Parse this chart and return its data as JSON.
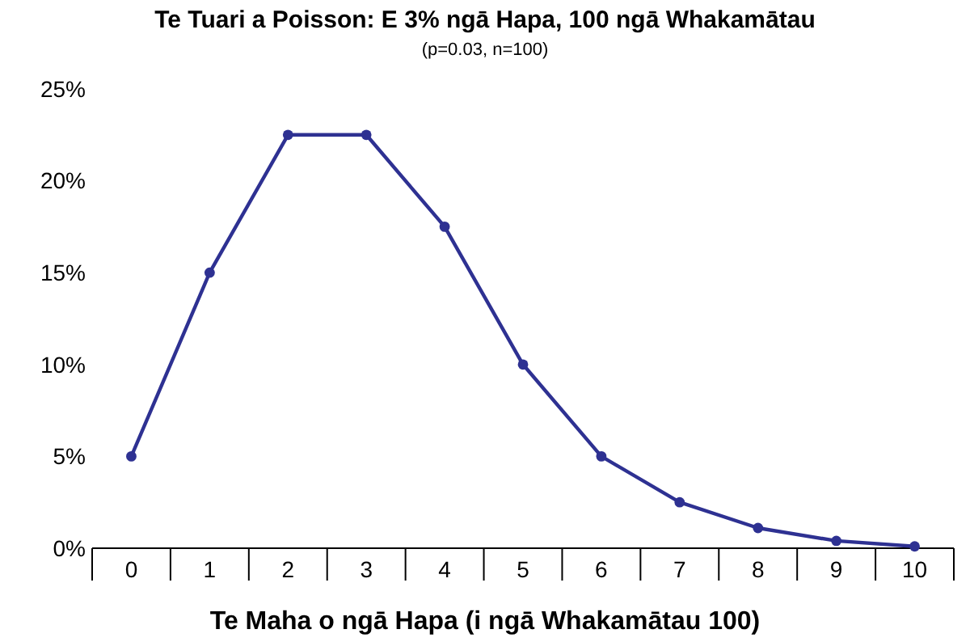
{
  "chart_data": {
    "type": "line",
    "title": "Te Tuari a Poisson: E 3% ngā Hapa, 100 ngā Whakamātau",
    "subtitle": "(p=0.03, n=100)",
    "xlabel": "Te Maha o ngā Hapa (i ngā Whakamātau 100)",
    "categories": [
      "0",
      "1",
      "2",
      "3",
      "4",
      "5",
      "6",
      "7",
      "8",
      "9",
      "10"
    ],
    "series": [
      {
        "color": "#2e3192",
        "values": [
          5,
          15,
          22.5,
          22.5,
          17.5,
          10,
          5,
          2.5,
          1.1,
          0.4,
          0.1
        ]
      }
    ],
    "ylim": [
      0,
      25
    ],
    "yticks": [
      {
        "value": 0,
        "label": "0%"
      },
      {
        "value": 5,
        "label": "5%"
      },
      {
        "value": 10,
        "label": "10%"
      },
      {
        "value": 15,
        "label": "15%"
      },
      {
        "value": 20,
        "label": "20%"
      },
      {
        "value": 25,
        "label": "25%"
      }
    ],
    "grid": false,
    "marker": "circle",
    "line_style": "solid"
  }
}
